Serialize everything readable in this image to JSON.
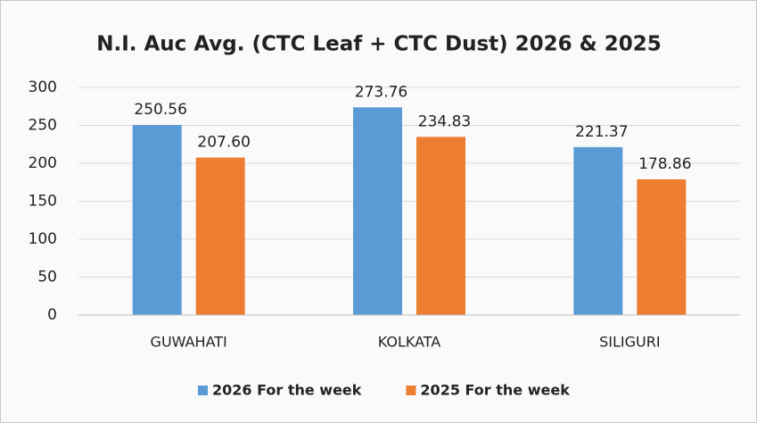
{
  "chart_data": {
    "type": "bar",
    "title": "N.I. Auc Avg. (CTC Leaf + CTC Dust) 2026 & 2025",
    "categories": [
      "GUWAHATI",
      "KOLKATA",
      "SILIGURI"
    ],
    "series": [
      {
        "name": "2026 For the week",
        "color": "#5b9bd5",
        "values": [
          250.56,
          273.76,
          221.37
        ],
        "value_labels": [
          "250.56",
          "273.76",
          "221.37"
        ]
      },
      {
        "name": "2025 For the week",
        "color": "#ed7d31",
        "values": [
          207.6,
          234.83,
          178.86
        ],
        "value_labels": [
          "207.60",
          "234.83",
          "178.86"
        ]
      }
    ],
    "ylim": [
      0,
      300
    ],
    "yticks": [
      0,
      50,
      100,
      150,
      200,
      250,
      300
    ],
    "grid": true,
    "legend": "bottom"
  }
}
